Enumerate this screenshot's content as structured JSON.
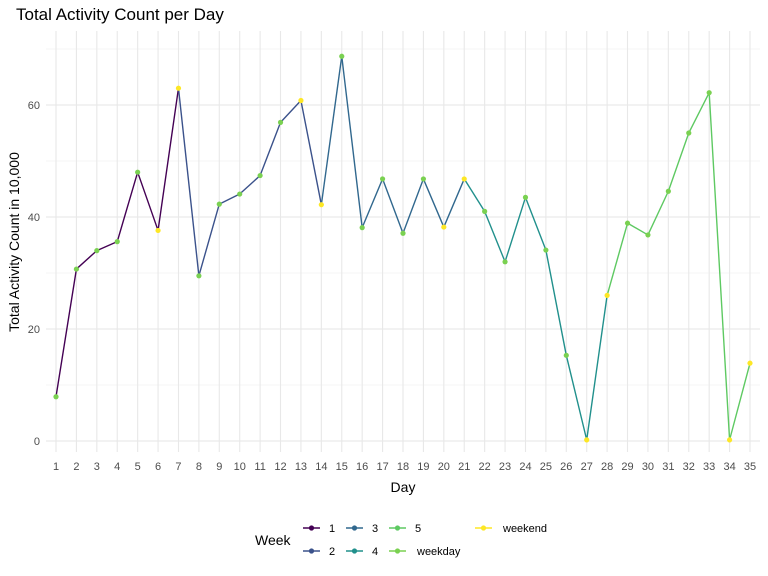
{
  "chart_data": {
    "type": "line",
    "title": "Total Activity Count per Day",
    "xlabel": "Day",
    "ylabel": "Total Activity Count in 10,000",
    "x": [
      1,
      2,
      3,
      4,
      5,
      6,
      7,
      8,
      9,
      10,
      11,
      12,
      13,
      14,
      15,
      16,
      17,
      18,
      19,
      20,
      21,
      22,
      23,
      24,
      25,
      26,
      27,
      28,
      29,
      30,
      31,
      32,
      33,
      34,
      35
    ],
    "y": [
      7.9,
      30.7,
      34.0,
      35.6,
      48.0,
      37.6,
      63.0,
      29.5,
      42.3,
      44.1,
      47.4,
      56.9,
      60.8,
      42.2,
      68.7,
      38.1,
      46.8,
      37.1,
      46.8,
      38.2,
      46.8,
      41.0,
      32.0,
      43.5,
      34.1,
      15.3,
      0.2,
      26.0,
      38.9,
      36.8,
      44.6,
      55.0,
      62.2,
      0.2,
      13.9
    ],
    "week": [
      1,
      1,
      1,
      1,
      1,
      1,
      1,
      2,
      2,
      2,
      2,
      2,
      2,
      2,
      3,
      3,
      3,
      3,
      3,
      3,
      3,
      4,
      4,
      4,
      4,
      4,
      4,
      4,
      5,
      5,
      5,
      5,
      5,
      5,
      5
    ],
    "day_type": [
      "weekday",
      "weekday",
      "weekday",
      "weekday",
      "weekday",
      "weekend",
      "weekend",
      "weekday",
      "weekday",
      "weekday",
      "weekday",
      "weekday",
      "weekend",
      "weekend",
      "weekday",
      "weekday",
      "weekday",
      "weekday",
      "weekday",
      "weekend",
      "weekend",
      "weekday",
      "weekday",
      "weekday",
      "weekday",
      "weekday",
      "weekend",
      "weekend",
      "weekday",
      "weekday",
      "weekday",
      "weekday",
      "weekday",
      "weekend",
      "weekend"
    ],
    "xlim": [
      1,
      35
    ],
    "ylim": [
      0,
      70
    ],
    "y_ticks": [
      0,
      20,
      40,
      60
    ],
    "x_tick_labels": [
      "1",
      "2",
      "3",
      "4",
      "5",
      "6",
      "7",
      "8",
      "9",
      "10",
      "11",
      "12",
      "13",
      "14",
      "15",
      "16",
      "17",
      "18",
      "19",
      "20",
      "21",
      "22",
      "23",
      "24",
      "25",
      "26",
      "27",
      "28",
      "29",
      "30",
      "31",
      "32",
      "33",
      "34",
      "35"
    ],
    "y_tick_labels": [
      "0",
      "20",
      "40",
      "60"
    ],
    "grid": true,
    "legend": {
      "title": "Week",
      "position": "bottom",
      "line_entries": [
        {
          "label": "1",
          "color": "#440154"
        },
        {
          "label": "2",
          "color": "#3b528b"
        },
        {
          "label": "3",
          "color": "#31688e"
        },
        {
          "label": "4",
          "color": "#21908c"
        },
        {
          "label": "5",
          "color": "#5ec962"
        }
      ],
      "point_entries": [
        {
          "label": "weekday",
          "color": "#7ad151"
        },
        {
          "label": "weekend",
          "color": "#fde725"
        }
      ]
    },
    "colors": {
      "week_1": "#440154",
      "week_2": "#3b528b",
      "week_3": "#31688e",
      "week_4": "#21908c",
      "week_5": "#5ec962",
      "weekday": "#7ad151",
      "weekend": "#fde725"
    }
  }
}
